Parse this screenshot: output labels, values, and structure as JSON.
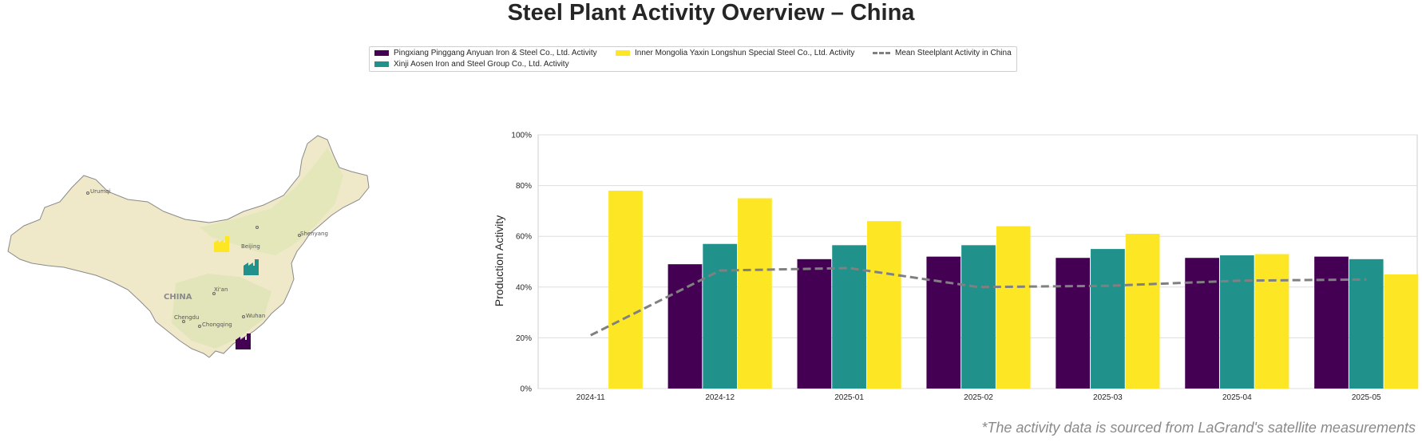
{
  "title": "Steel Plant Activity Overview – China",
  "footnote": "*The activity data is sourced from LaGrand's satellite measurements",
  "legend": {
    "items": [
      {
        "label": "Pingxiang Pinggang Anyuan Iron & Steel Co., Ltd. Activity",
        "color": "#440154"
      },
      {
        "label": "Xinji Aosen Iron and Steel Group Co., Ltd. Activity",
        "color": "#21918c"
      },
      {
        "label": "Inner Mongolia Yaxin Longshun Special Steel Co., Ltd. Activity",
        "color": "#fde725"
      },
      {
        "label": "Mean Steelplant Activity in China",
        "color": "#808080"
      }
    ]
  },
  "map": {
    "country_label": "CHINA",
    "cities": [
      "Urumqi",
      "Beijing",
      "Shenyang",
      "Xi'an",
      "Chengdu",
      "Chongqing",
      "Wuhan"
    ],
    "factory_icons": [
      {
        "name": "inner-mongolia-yaxin-plant",
        "color": "#fde725"
      },
      {
        "name": "xinji-aosen-plant",
        "color": "#21918c"
      },
      {
        "name": "pingxiang-pinggang-plant",
        "color": "#440154"
      }
    ]
  },
  "chart_data": {
    "type": "bar",
    "ylabel": "Production Activity",
    "xlabel": "",
    "categories": [
      "2024-11",
      "2024-12",
      "2025-01",
      "2025-02",
      "2025-03",
      "2025-04",
      "2025-05"
    ],
    "yticks": [
      "0%",
      "20%",
      "40%",
      "60%",
      "80%",
      "100%"
    ],
    "ylim": [
      0,
      100
    ],
    "grid": true,
    "legend_position": "top-center",
    "series": [
      {
        "name": "Pingxiang Pinggang Anyuan Iron & Steel Co., Ltd. Activity",
        "color": "#440154",
        "values": [
          null,
          49,
          51,
          52,
          51.5,
          51.5,
          52
        ]
      },
      {
        "name": "Xinji Aosen Iron and Steel Group Co., Ltd. Activity",
        "color": "#21918c",
        "values": [
          null,
          57,
          56.5,
          56.5,
          55,
          52.5,
          51
        ]
      },
      {
        "name": "Inner Mongolia Yaxin Longshun Special Steel Co., Ltd. Activity",
        "color": "#fde725",
        "values": [
          78,
          75,
          66,
          64,
          61,
          53,
          45
        ]
      }
    ],
    "line": {
      "name": "Mean Steelplant Activity in China",
      "color": "#808080",
      "values": [
        21,
        46.5,
        47.5,
        40,
        40.5,
        42.5,
        43
      ]
    }
  }
}
